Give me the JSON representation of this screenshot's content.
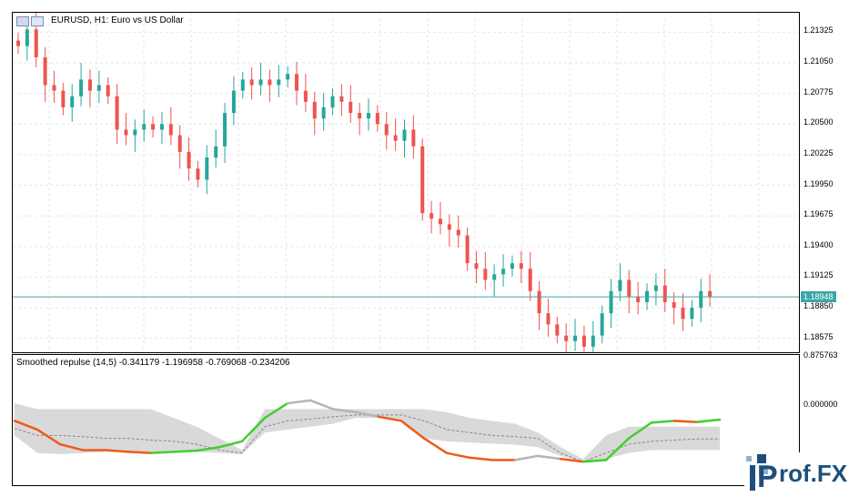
{
  "main_chart": {
    "title": "EURUSD, H1:  Euro vs US Dollar",
    "price_ticks": [
      "1.21325",
      "1.21050",
      "1.20775",
      "1.20500",
      "1.20225",
      "1.19950",
      "1.19675",
      "1.19400",
      "1.19125",
      "1.18850",
      "1.18575"
    ],
    "current_price": "1.18948",
    "colors": {
      "bull": "#26a69a",
      "bear": "#ef5350",
      "grid": "#e6e6e6",
      "price_line": "#3aa6a6"
    }
  },
  "indicator": {
    "title": "Smoothed repulse (14,5) -0.341179 -1.196958 -0.769068 -0.234206",
    "ticks": [
      "0.875763",
      "0.000000"
    ],
    "colors": {
      "band": "#d9d9d9",
      "up": "#44cc33",
      "down": "#f05a1a",
      "neutral": "#b5b5b5"
    }
  },
  "logo": {
    "text": "rof.FX",
    "letter": "P"
  },
  "chart_data": [
    {
      "type": "candlestick",
      "title": "EURUSD, H1:  Euro vs US Dollar",
      "ylim": [
        1.1845,
        1.215
      ],
      "series": [
        {
          "name": "EURUSD",
          "values": [
            1.212,
            1.2135,
            1.211,
            1.2085,
            1.208,
            1.2065,
            1.2075,
            1.209,
            1.208,
            1.2085,
            1.2075,
            1.2045,
            1.204,
            1.2045,
            1.205,
            1.2045,
            1.205,
            1.204,
            1.2025,
            1.201,
            1.2,
            1.202,
            1.203,
            1.206,
            1.208,
            1.209,
            1.2085,
            1.209,
            1.2085,
            1.209,
            1.2095,
            1.208,
            1.207,
            1.2055,
            1.2065,
            1.2075,
            1.207,
            1.206,
            1.2055,
            1.206,
            1.205,
            1.204,
            1.2035,
            1.2045,
            1.203,
            1.197,
            1.1965,
            1.196,
            1.1955,
            1.195,
            1.1925,
            1.192,
            1.191,
            1.1915,
            1.192,
            1.1925,
            1.192,
            1.19,
            1.188,
            1.187,
            1.186,
            1.1855,
            1.186,
            1.185,
            1.186,
            1.188,
            1.19,
            1.191,
            1.1895,
            1.189,
            1.19,
            1.1905,
            1.189,
            1.1885,
            1.1875,
            1.1885,
            1.19,
            1.1895
          ]
        }
      ]
    },
    {
      "type": "area",
      "title": "Smoothed repulse (14,5) -0.341179 -1.196958 -0.769068 -0.234206",
      "ylim": [
        -1.35,
        0.875763
      ],
      "series": [
        {
          "name": "-0.341179",
          "values": [
            -0.25,
            -0.4,
            -0.65,
            -0.75,
            -0.75,
            -0.78,
            -0.8,
            -0.78,
            -0.76,
            -0.7,
            -0.6,
            -0.2,
            0.05,
            0.1,
            -0.05,
            -0.1,
            -0.18,
            -0.25,
            -0.55,
            -0.8,
            -0.88,
            -0.92,
            -0.92,
            -0.85,
            -0.9,
            -0.95,
            -0.92,
            -0.55,
            -0.28,
            -0.25,
            -0.27,
            -0.23
          ]
        },
        {
          "name": "-1.196958",
          "values": [
            -0.5,
            -0.8,
            -0.82,
            -0.8,
            -0.78,
            -0.78,
            -0.78,
            -0.76,
            -0.78,
            -0.8,
            -0.82,
            -0.45,
            -0.4,
            -0.35,
            -0.3,
            -0.2,
            -0.2,
            -0.25,
            -0.55,
            -0.6,
            -0.62,
            -0.64,
            -0.66,
            -0.7,
            -0.85,
            -0.95,
            -0.9,
            -0.8,
            -0.75,
            -0.75,
            -0.75,
            -0.75
          ]
        },
        {
          "name": "-0.769068",
          "values": [
            0.05,
            -0.05,
            -0.05,
            -0.05,
            -0.05,
            -0.05,
            -0.05,
            -0.2,
            -0.35,
            -0.55,
            -0.75,
            -0.05,
            -0.05,
            -0.05,
            -0.05,
            -0.05,
            -0.05,
            -0.05,
            -0.05,
            -0.1,
            -0.2,
            -0.25,
            -0.3,
            -0.45,
            -0.7,
            -0.9,
            -0.5,
            -0.35,
            -0.35,
            -0.35,
            -0.35,
            -0.35
          ]
        },
        {
          "name": "-0.234206",
          "values": [
            -0.38,
            -0.5,
            -0.5,
            -0.52,
            -0.55,
            -0.55,
            -0.58,
            -0.6,
            -0.65,
            -0.75,
            -0.8,
            -0.35,
            -0.25,
            -0.22,
            -0.18,
            -0.15,
            -0.15,
            -0.15,
            -0.25,
            -0.4,
            -0.45,
            -0.5,
            -0.52,
            -0.55,
            -0.8,
            -0.95,
            -0.8,
            -0.65,
            -0.6,
            -0.58,
            -0.56,
            -0.56
          ]
        }
      ]
    }
  ]
}
